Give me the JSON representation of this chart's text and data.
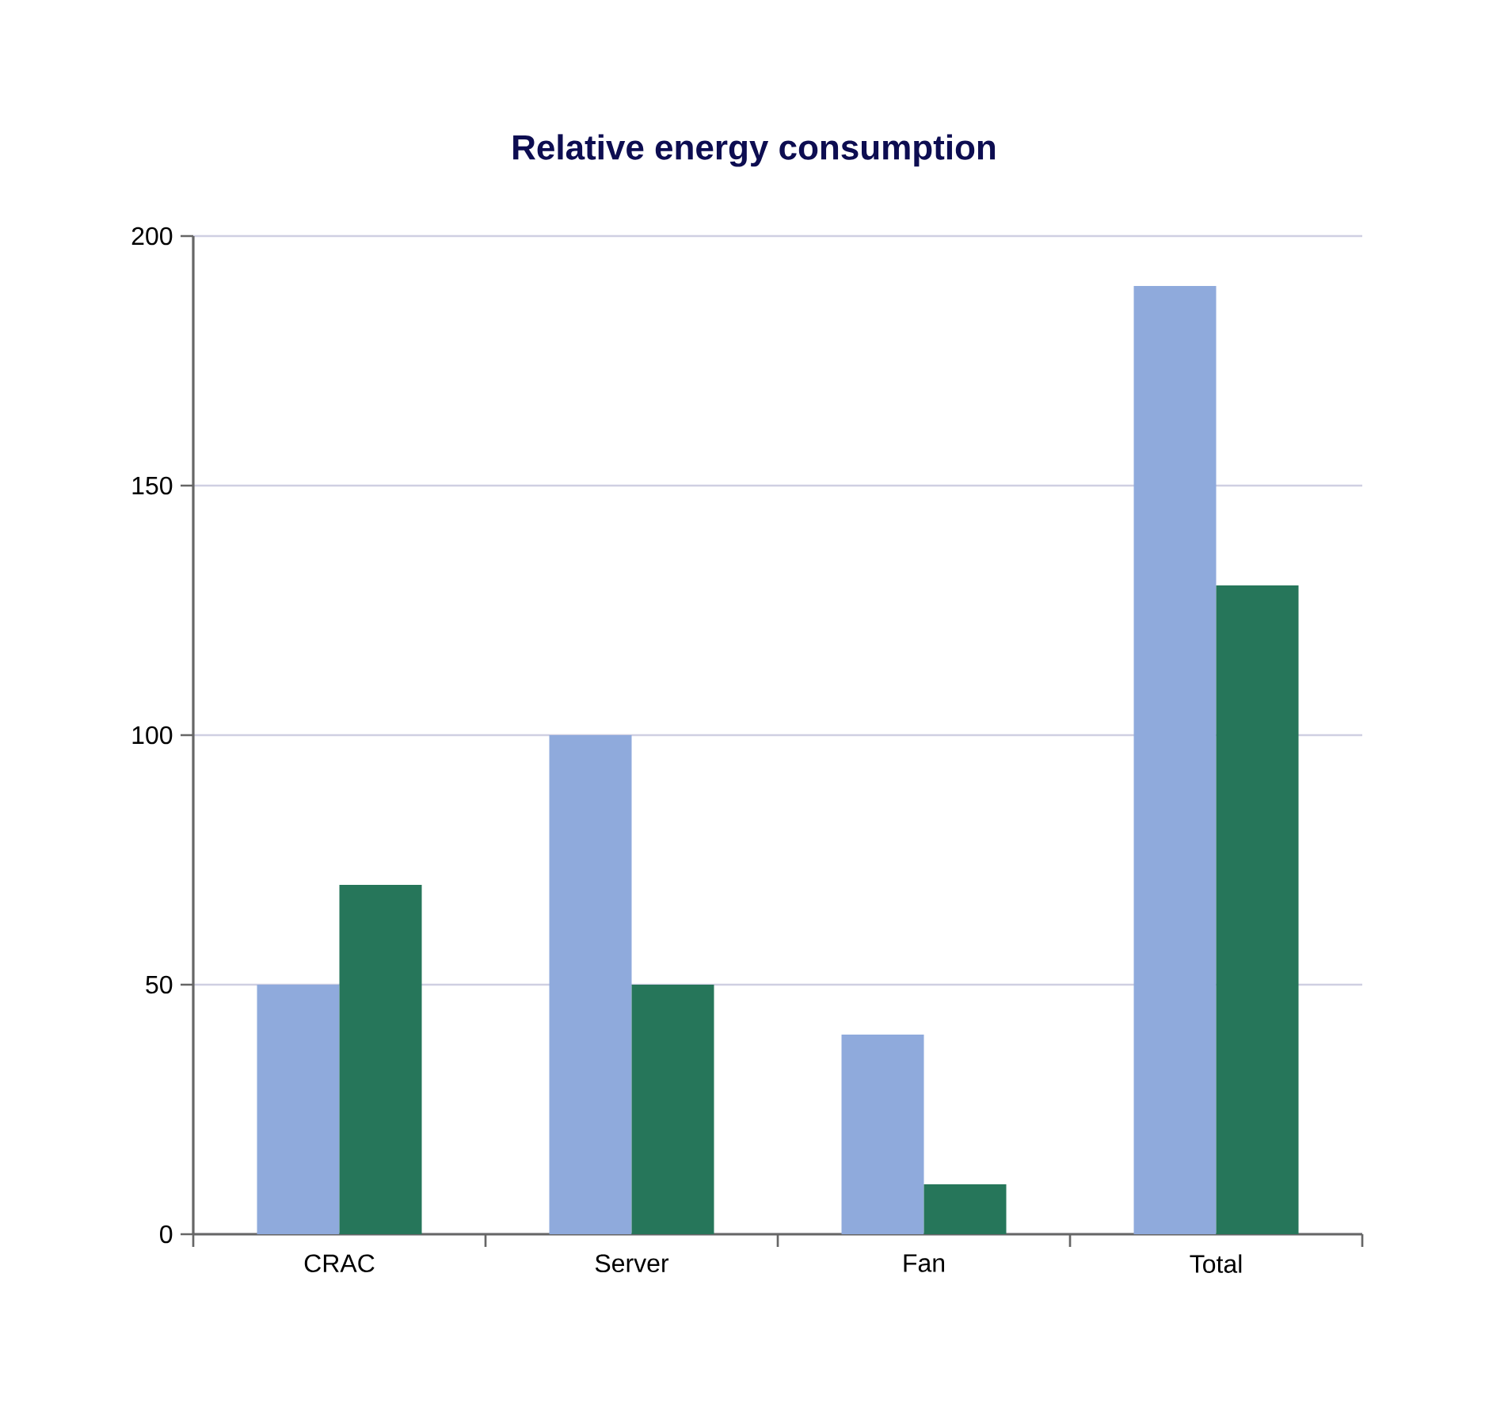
{
  "chart_data": {
    "type": "bar",
    "title": "Relative energy consumption",
    "categories": [
      "CRAC",
      "Server",
      "Fan",
      "Total"
    ],
    "series": [
      {
        "color": "#8faadc",
        "values": [
          50,
          100,
          40,
          190
        ]
      },
      {
        "color": "#26765a",
        "values": [
          70,
          50,
          10,
          130
        ]
      }
    ],
    "ylim": [
      0,
      200
    ],
    "yticks": [
      0,
      50,
      100,
      150,
      200
    ],
    "grid": "y"
  }
}
